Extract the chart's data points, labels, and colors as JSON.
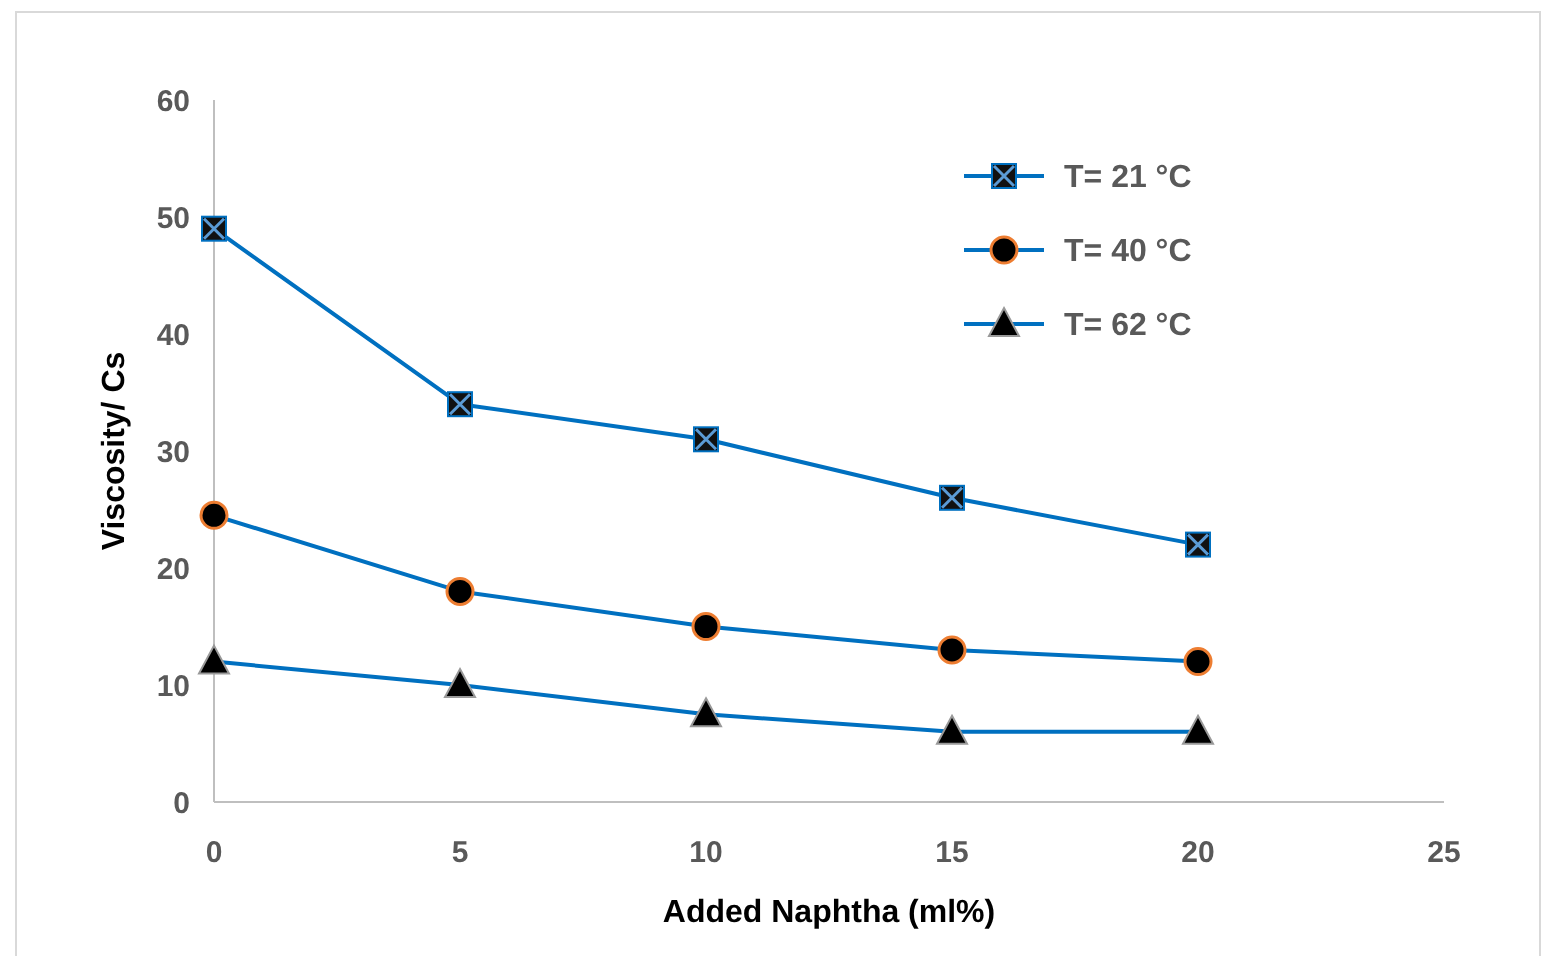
{
  "chart_data": {
    "type": "line",
    "xlabel": "Added Naphtha (ml%)",
    "ylabel": "Viscosity/ Cs",
    "x": [
      0,
      5,
      10,
      15,
      20
    ],
    "xlim": [
      0,
      25
    ],
    "xticks": [
      0,
      5,
      10,
      15,
      20,
      25
    ],
    "ylim": [
      0,
      60
    ],
    "yticks": [
      0,
      10,
      20,
      30,
      40,
      50,
      60
    ],
    "legend": "top right",
    "grid": false,
    "line_style": "solid",
    "series": [
      {
        "name": "T= 21 °C",
        "color": "#0070c0",
        "marker": "square",
        "values": [
          49,
          34,
          31,
          26,
          22
        ]
      },
      {
        "name": "T= 40 °C",
        "color": "#0070c0",
        "marker": "circle",
        "values": [
          24.5,
          18,
          15,
          13,
          12
        ]
      },
      {
        "name": "T= 62 °C",
        "color": "#0070c0",
        "marker": "triangle",
        "values": [
          12,
          10,
          7.5,
          6,
          6
        ]
      }
    ]
  }
}
